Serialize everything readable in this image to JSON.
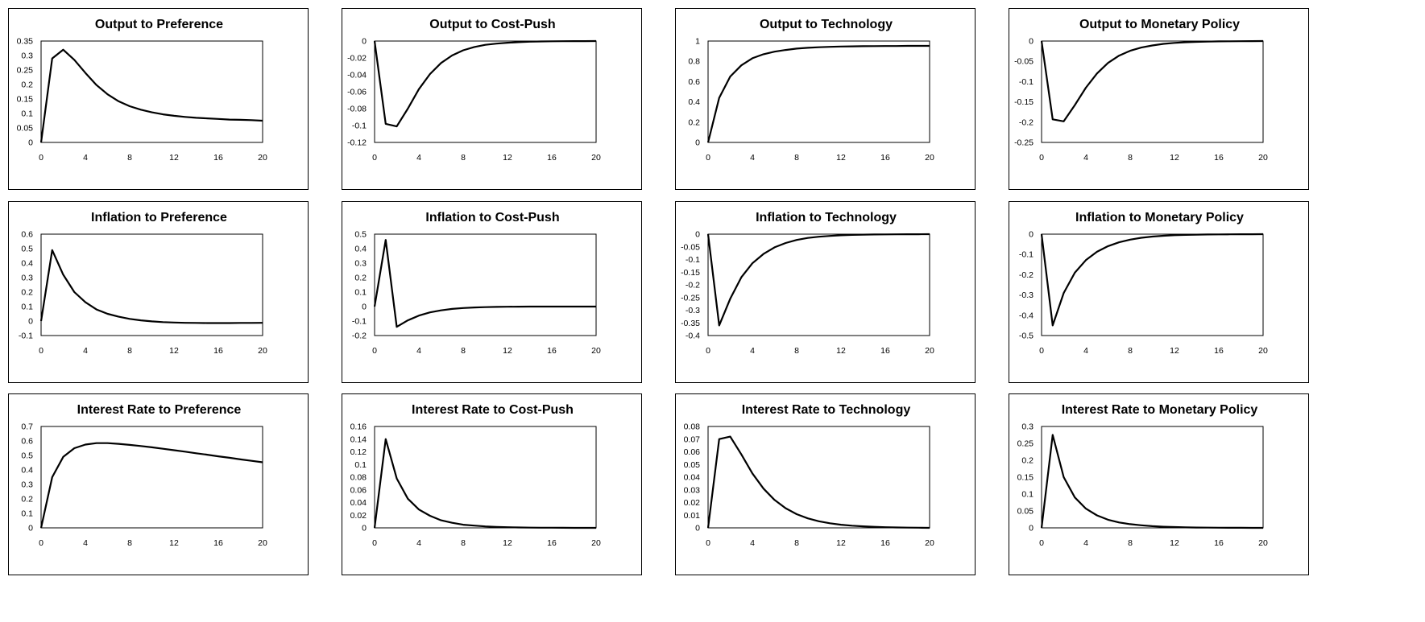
{
  "chart_data": [
    {
      "type": "line",
      "title": "Output to Preference",
      "x": [
        0,
        1,
        2,
        3,
        4,
        5,
        6,
        7,
        8,
        9,
        10,
        11,
        12,
        13,
        14,
        15,
        16,
        17,
        18,
        19,
        20
      ],
      "values": [
        0,
        0.29,
        0.32,
        0.285,
        0.24,
        0.198,
        0.166,
        0.142,
        0.125,
        0.113,
        0.104,
        0.097,
        0.092,
        0.088,
        0.085,
        0.083,
        0.081,
        0.079,
        0.078,
        0.077,
        0.075
      ],
      "xticks": [
        0,
        4,
        8,
        12,
        16,
        20
      ],
      "yticks": [
        0,
        0.05,
        0.1,
        0.15,
        0.2,
        0.25,
        0.3,
        0.35
      ],
      "yticklabels": [
        "0",
        "0.05",
        "0.1",
        "0.15",
        "0.2",
        "0.25",
        "0.3",
        "0.35"
      ],
      "ylim": [
        0,
        0.35
      ],
      "xlim": [
        0,
        20
      ]
    },
    {
      "type": "line",
      "title": "Output to Cost-Push",
      "x": [
        0,
        1,
        2,
        3,
        4,
        5,
        6,
        7,
        8,
        9,
        10,
        11,
        12,
        13,
        14,
        15,
        16,
        17,
        18,
        19,
        20
      ],
      "values": [
        0,
        -0.098,
        -0.101,
        -0.08,
        -0.057,
        -0.039,
        -0.026,
        -0.017,
        -0.011,
        -0.007,
        -0.0045,
        -0.003,
        -0.002,
        -0.0013,
        -0.0008,
        -0.0005,
        -0.0003,
        -0.0002,
        -0.0001,
        -0.0001,
        0
      ],
      "xticks": [
        0,
        4,
        8,
        12,
        16,
        20
      ],
      "yticks": [
        -0.12,
        -0.1,
        -0.08,
        -0.06,
        -0.04,
        -0.02,
        0
      ],
      "yticklabels": [
        "-0.12",
        "-0.1",
        "-0.08",
        "-0.06",
        "-0.04",
        "-0.02",
        "0"
      ],
      "ylim": [
        -0.12,
        0
      ],
      "xlim": [
        0,
        20
      ]
    },
    {
      "type": "line",
      "title": "Output to Technology",
      "x": [
        0,
        1,
        2,
        3,
        4,
        5,
        6,
        7,
        8,
        9,
        10,
        11,
        12,
        13,
        14,
        15,
        16,
        17,
        18,
        19,
        20
      ],
      "values": [
        0,
        0.44,
        0.65,
        0.76,
        0.83,
        0.87,
        0.895,
        0.912,
        0.925,
        0.933,
        0.939,
        0.943,
        0.946,
        0.948,
        0.949,
        0.95,
        0.951,
        0.951,
        0.952,
        0.952,
        0.952
      ],
      "xticks": [
        0,
        4,
        8,
        12,
        16,
        20
      ],
      "yticks": [
        0,
        0.2,
        0.4,
        0.6,
        0.8,
        1
      ],
      "yticklabels": [
        "0",
        "0.2",
        "0.4",
        "0.6",
        "0.8",
        "1"
      ],
      "ylim": [
        0,
        1
      ],
      "xlim": [
        0,
        20
      ]
    },
    {
      "type": "line",
      "title": "Output to Monetary Policy",
      "x": [
        0,
        1,
        2,
        3,
        4,
        5,
        6,
        7,
        8,
        9,
        10,
        11,
        12,
        13,
        14,
        15,
        16,
        17,
        18,
        19,
        20
      ],
      "values": [
        0,
        -0.193,
        -0.198,
        -0.158,
        -0.115,
        -0.08,
        -0.054,
        -0.036,
        -0.024,
        -0.016,
        -0.011,
        -0.007,
        -0.0045,
        -0.003,
        -0.002,
        -0.0013,
        -0.0008,
        -0.0005,
        -0.0003,
        -0.0002,
        0
      ],
      "xticks": [
        0,
        4,
        8,
        12,
        16,
        20
      ],
      "yticks": [
        -0.25,
        -0.2,
        -0.15,
        -0.1,
        -0.05,
        0
      ],
      "yticklabels": [
        "-0.25",
        "-0.2",
        "-0.15",
        "-0.1",
        "-0.05",
        "0"
      ],
      "ylim": [
        -0.25,
        0
      ],
      "xlim": [
        0,
        20
      ]
    },
    {
      "type": "line",
      "title": "Inflation to Preference",
      "x": [
        0,
        1,
        2,
        3,
        4,
        5,
        6,
        7,
        8,
        9,
        10,
        11,
        12,
        13,
        14,
        15,
        16,
        17,
        18,
        19,
        20
      ],
      "values": [
        0,
        0.49,
        0.32,
        0.2,
        0.13,
        0.08,
        0.05,
        0.03,
        0.015,
        0.005,
        -0.002,
        -0.007,
        -0.01,
        -0.012,
        -0.013,
        -0.014,
        -0.014,
        -0.014,
        -0.013,
        -0.013,
        -0.012
      ],
      "xticks": [
        0,
        4,
        8,
        12,
        16,
        20
      ],
      "yticks": [
        -0.1,
        0,
        0.1,
        0.2,
        0.3,
        0.4,
        0.5,
        0.6
      ],
      "yticklabels": [
        "-0.1",
        "0",
        "0.1",
        "0.2",
        "0.3",
        "0.4",
        "0.5",
        "0.6"
      ],
      "ylim": [
        -0.1,
        0.6
      ],
      "xlim": [
        0,
        20
      ]
    },
    {
      "type": "line",
      "title": "Inflation to Cost-Push",
      "x": [
        0,
        1,
        2,
        3,
        4,
        5,
        6,
        7,
        8,
        9,
        10,
        11,
        12,
        13,
        14,
        15,
        16,
        17,
        18,
        19,
        20
      ],
      "values": [
        0,
        0.46,
        -0.14,
        -0.095,
        -0.062,
        -0.04,
        -0.026,
        -0.016,
        -0.01,
        -0.006,
        -0.004,
        -0.002,
        -0.001,
        -0.0005,
        0,
        0,
        0,
        0,
        0,
        0,
        0
      ],
      "xticks": [
        0,
        4,
        8,
        12,
        16,
        20
      ],
      "yticks": [
        -0.2,
        -0.1,
        0,
        0.1,
        0.2,
        0.3,
        0.4,
        0.5
      ],
      "yticklabels": [
        "-0.2",
        "-0.1",
        "0",
        "0.1",
        "0.2",
        "0.3",
        "0.4",
        "0.5"
      ],
      "ylim": [
        -0.2,
        0.5
      ],
      "xlim": [
        0,
        20
      ]
    },
    {
      "type": "line",
      "title": "Inflation to Technology",
      "x": [
        0,
        1,
        2,
        3,
        4,
        5,
        6,
        7,
        8,
        9,
        10,
        11,
        12,
        13,
        14,
        15,
        16,
        17,
        18,
        19,
        20
      ],
      "values": [
        0,
        -0.36,
        -0.255,
        -0.17,
        -0.115,
        -0.078,
        -0.052,
        -0.035,
        -0.023,
        -0.015,
        -0.01,
        -0.007,
        -0.0045,
        -0.003,
        -0.002,
        -0.0013,
        -0.0008,
        -0.0005,
        -0.0003,
        -0.0002,
        0
      ],
      "xticks": [
        0,
        4,
        8,
        12,
        16,
        20
      ],
      "yticks": [
        -0.4,
        -0.35,
        -0.3,
        -0.25,
        -0.2,
        -0.15,
        -0.1,
        -0.05,
        0
      ],
      "yticklabels": [
        "-0.4",
        "-0.35",
        "-0.3",
        "-0.25",
        "-0.2",
        "-0.15",
        "-0.1",
        "-0.05",
        "0"
      ],
      "ylim": [
        -0.4,
        0
      ],
      "xlim": [
        0,
        20
      ]
    },
    {
      "type": "line",
      "title": "Inflation to Monetary Policy",
      "x": [
        0,
        1,
        2,
        3,
        4,
        5,
        6,
        7,
        8,
        9,
        10,
        11,
        12,
        13,
        14,
        15,
        16,
        17,
        18,
        19,
        20
      ],
      "values": [
        0,
        -0.45,
        -0.29,
        -0.19,
        -0.128,
        -0.087,
        -0.059,
        -0.04,
        -0.027,
        -0.018,
        -0.012,
        -0.008,
        -0.005,
        -0.0035,
        -0.0023,
        -0.0015,
        -0.001,
        -0.0006,
        -0.0004,
        -0.0002,
        0
      ],
      "xticks": [
        0,
        4,
        8,
        12,
        16,
        20
      ],
      "yticks": [
        -0.5,
        -0.4,
        -0.3,
        -0.2,
        -0.1,
        0
      ],
      "yticklabels": [
        "-0.5",
        "-0.4",
        "-0.3",
        "-0.2",
        "-0.1",
        "0"
      ],
      "ylim": [
        -0.5,
        0
      ],
      "xlim": [
        0,
        20
      ]
    },
    {
      "type": "line",
      "title": "Interest Rate to Preference",
      "x": [
        0,
        1,
        2,
        3,
        4,
        5,
        6,
        7,
        8,
        9,
        10,
        11,
        12,
        13,
        14,
        15,
        16,
        17,
        18,
        19,
        20
      ],
      "values": [
        0,
        0.35,
        0.49,
        0.55,
        0.575,
        0.585,
        0.585,
        0.58,
        0.573,
        0.565,
        0.556,
        0.546,
        0.536,
        0.526,
        0.515,
        0.505,
        0.494,
        0.484,
        0.473,
        0.463,
        0.453
      ],
      "xticks": [
        0,
        4,
        8,
        12,
        16,
        20
      ],
      "yticks": [
        0,
        0.1,
        0.2,
        0.3,
        0.4,
        0.5,
        0.6,
        0.7
      ],
      "yticklabels": [
        "0",
        "0.1",
        "0.2",
        "0.3",
        "0.4",
        "0.5",
        "0.6",
        "0.7"
      ],
      "ylim": [
        0,
        0.7
      ],
      "xlim": [
        0,
        20
      ]
    },
    {
      "type": "line",
      "title": "Interest Rate to Cost-Push",
      "x": [
        0,
        1,
        2,
        3,
        4,
        5,
        6,
        7,
        8,
        9,
        10,
        11,
        12,
        13,
        14,
        15,
        16,
        17,
        18,
        19,
        20
      ],
      "values": [
        0,
        0.14,
        0.078,
        0.046,
        0.029,
        0.019,
        0.012,
        0.008,
        0.005,
        0.0035,
        0.0023,
        0.0015,
        0.001,
        0.0006,
        0.0004,
        0.0003,
        0.0002,
        0.0001,
        0,
        0,
        0
      ],
      "xticks": [
        0,
        4,
        8,
        12,
        16,
        20
      ],
      "yticks": [
        0,
        0.02,
        0.04,
        0.06,
        0.08,
        0.1,
        0.12,
        0.14,
        0.16
      ],
      "yticklabels": [
        "0",
        "0.02",
        "0.04",
        "0.06",
        "0.08",
        "0.1",
        "0.12",
        "0.14",
        "0.16"
      ],
      "ylim": [
        0,
        0.16
      ],
      "xlim": [
        0,
        20
      ]
    },
    {
      "type": "line",
      "title": "Interest Rate to Technology",
      "x": [
        0,
        1,
        2,
        3,
        4,
        5,
        6,
        7,
        8,
        9,
        10,
        11,
        12,
        13,
        14,
        15,
        16,
        17,
        18,
        19,
        20
      ],
      "values": [
        0,
        0.07,
        0.072,
        0.058,
        0.043,
        0.031,
        0.022,
        0.0155,
        0.0108,
        0.0075,
        0.0052,
        0.0036,
        0.0025,
        0.0017,
        0.0012,
        0.0008,
        0.0005,
        0.0003,
        0.0002,
        0.0001,
        0
      ],
      "xticks": [
        0,
        4,
        8,
        12,
        16,
        20
      ],
      "yticks": [
        0,
        0.01,
        0.02,
        0.03,
        0.04,
        0.05,
        0.06,
        0.07,
        0.08
      ],
      "yticklabels": [
        "0",
        "0.01",
        "0.02",
        "0.03",
        "0.04",
        "0.05",
        "0.06",
        "0.07",
        "0.08"
      ],
      "ylim": [
        0,
        0.08
      ],
      "xlim": [
        0,
        20
      ]
    },
    {
      "type": "line",
      "title": "Interest Rate to Monetary Policy",
      "x": [
        0,
        1,
        2,
        3,
        4,
        5,
        6,
        7,
        8,
        9,
        10,
        11,
        12,
        13,
        14,
        15,
        16,
        17,
        18,
        19,
        20
      ],
      "values": [
        0,
        0.275,
        0.15,
        0.09,
        0.057,
        0.037,
        0.024,
        0.016,
        0.011,
        0.0075,
        0.005,
        0.0034,
        0.0023,
        0.0015,
        0.001,
        0.0007,
        0.0005,
        0.0003,
        0.0002,
        0.0001,
        0
      ],
      "xticks": [
        0,
        4,
        8,
        12,
        16,
        20
      ],
      "yticks": [
        0,
        0.05,
        0.1,
        0.15,
        0.2,
        0.25,
        0.3
      ],
      "yticklabels": [
        "0",
        "0.05",
        "0.1",
        "0.15",
        "0.2",
        "0.25",
        "0.3"
      ],
      "ylim": [
        0,
        0.3
      ],
      "xlim": [
        0,
        20
      ]
    }
  ]
}
